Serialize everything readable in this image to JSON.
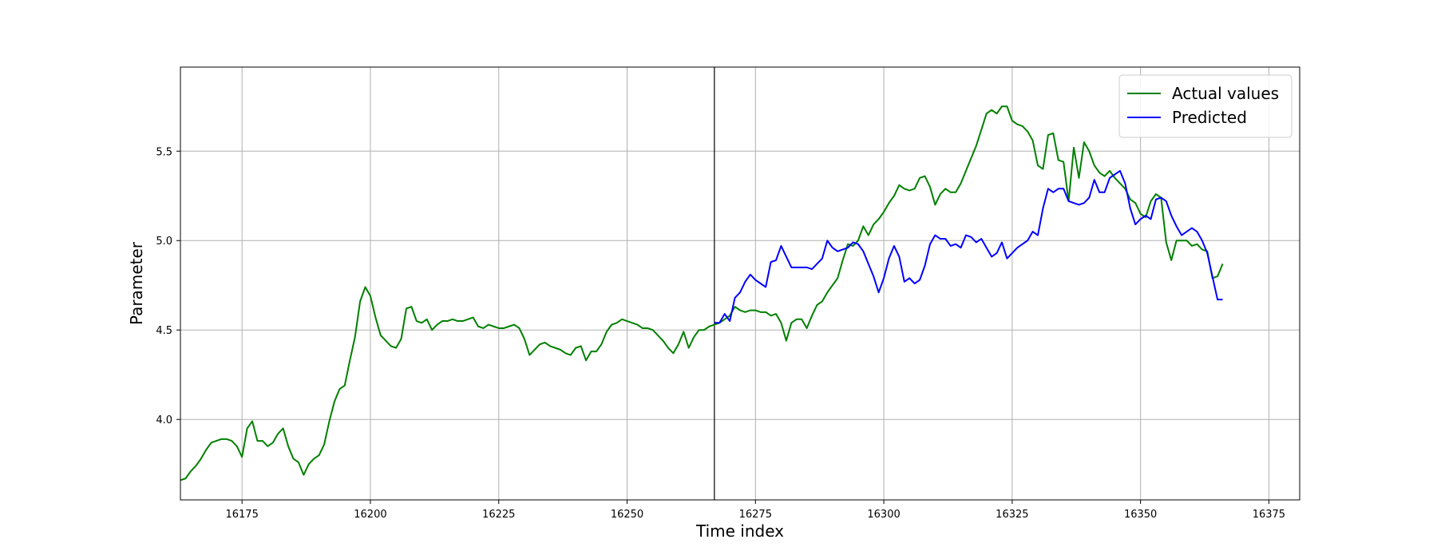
{
  "chart_data": {
    "type": "line",
    "title": "",
    "xlabel": "Time index",
    "ylabel": "Parameter",
    "xlim": [
      16163,
      16381
    ],
    "ylim": [
      3.55,
      5.97
    ],
    "x_ticks": [
      16175,
      16200,
      16225,
      16250,
      16275,
      16300,
      16325,
      16350,
      16375
    ],
    "y_ticks": [
      4.0,
      4.5,
      5.0,
      5.5
    ],
    "x_tick_labels": [
      "16175",
      "16200",
      "16225",
      "16250",
      "16275",
      "16300",
      "16325",
      "16350",
      "16375"
    ],
    "y_tick_labels": [
      "4.0",
      "4.5",
      "5.0",
      "5.5"
    ],
    "grid": true,
    "legend_position": "top-right",
    "vertical_marker_x": 16267,
    "series": [
      {
        "name": "Actual values",
        "color": "#008000",
        "x_start": 16163,
        "values": [
          3.66,
          3.67,
          3.71,
          3.74,
          3.78,
          3.83,
          3.87,
          3.88,
          3.89,
          3.89,
          3.88,
          3.85,
          3.79,
          3.95,
          3.99,
          3.88,
          3.88,
          3.85,
          3.87,
          3.92,
          3.95,
          3.85,
          3.78,
          3.76,
          3.69,
          3.75,
          3.78,
          3.8,
          3.86,
          3.99,
          4.1,
          4.17,
          4.19,
          4.33,
          4.46,
          4.66,
          4.74,
          4.69,
          4.57,
          4.47,
          4.44,
          4.41,
          4.4,
          4.45,
          4.62,
          4.63,
          4.55,
          4.54,
          4.56,
          4.5,
          4.53,
          4.55,
          4.55,
          4.56,
          4.55,
          4.55,
          4.56,
          4.57,
          4.52,
          4.51,
          4.53,
          4.52,
          4.51,
          4.51,
          4.52,
          4.53,
          4.51,
          4.45,
          4.36,
          4.39,
          4.42,
          4.43,
          4.41,
          4.4,
          4.39,
          4.37,
          4.36,
          4.4,
          4.41,
          4.33,
          4.38,
          4.38,
          4.42,
          4.49,
          4.53,
          4.54,
          4.56,
          4.55,
          4.54,
          4.53,
          4.51,
          4.51,
          4.5,
          4.47,
          4.44,
          4.4,
          4.37,
          4.42,
          4.49,
          4.4,
          4.46,
          4.5,
          4.5,
          4.52,
          4.53,
          4.54,
          4.56,
          4.58,
          4.63,
          4.61,
          4.6,
          4.61,
          4.61,
          4.6,
          4.6,
          4.58,
          4.59,
          4.54,
          4.44,
          4.54,
          4.56,
          4.56,
          4.51,
          4.58,
          4.64,
          4.66,
          4.71,
          4.75,
          4.79,
          4.89,
          4.98,
          4.97,
          5.0,
          5.08,
          5.03,
          5.09,
          5.12,
          5.16,
          5.21,
          5.25,
          5.31,
          5.29,
          5.28,
          5.29,
          5.35,
          5.36,
          5.3,
          5.2,
          5.26,
          5.29,
          5.27,
          5.27,
          5.32,
          5.39,
          5.46,
          5.53,
          5.62,
          5.71,
          5.73,
          5.71,
          5.75,
          5.75,
          5.67,
          5.65,
          5.64,
          5.61,
          5.56,
          5.42,
          5.4,
          5.59,
          5.6,
          5.45,
          5.44,
          5.22,
          5.52,
          5.35,
          5.55,
          5.5,
          5.42,
          5.38,
          5.36,
          5.39,
          5.35,
          5.32,
          5.29,
          5.23,
          5.21,
          5.15,
          5.13,
          5.22,
          5.26,
          5.24,
          4.99,
          4.89,
          5.0,
          5.0,
          5.0,
          4.97,
          4.98,
          4.95,
          4.94,
          4.79,
          4.8,
          4.87
        ]
      },
      {
        "name": "Predicted",
        "color": "#0000ff",
        "x_start": 16267,
        "values": [
          4.54,
          4.54,
          4.59,
          4.55,
          4.68,
          4.71,
          4.77,
          4.81,
          4.78,
          4.76,
          4.74,
          4.88,
          4.89,
          4.97,
          4.91,
          4.85,
          4.85,
          4.85,
          4.85,
          4.84,
          4.87,
          4.9,
          5.0,
          4.96,
          4.94,
          4.95,
          4.96,
          4.99,
          4.98,
          4.94,
          4.87,
          4.8,
          4.71,
          4.79,
          4.9,
          4.97,
          4.91,
          4.77,
          4.79,
          4.76,
          4.78,
          4.86,
          4.98,
          5.03,
          5.01,
          5.01,
          4.97,
          4.98,
          4.96,
          5.03,
          5.02,
          4.99,
          5.01,
          4.96,
          4.91,
          4.93,
          4.99,
          4.9,
          4.93,
          4.96,
          4.98,
          5.0,
          5.05,
          5.03,
          5.18,
          5.29,
          5.27,
          5.29,
          5.29,
          5.22,
          5.21,
          5.2,
          5.21,
          5.24,
          5.34,
          5.27,
          5.27,
          5.35,
          5.37,
          5.39,
          5.32,
          5.18,
          5.09,
          5.12,
          5.14,
          5.12,
          5.23,
          5.24,
          5.22,
          5.14,
          5.08,
          5.03,
          5.05,
          5.07,
          5.05,
          5.0,
          4.93,
          4.8,
          4.67,
          4.67
        ]
      }
    ]
  }
}
